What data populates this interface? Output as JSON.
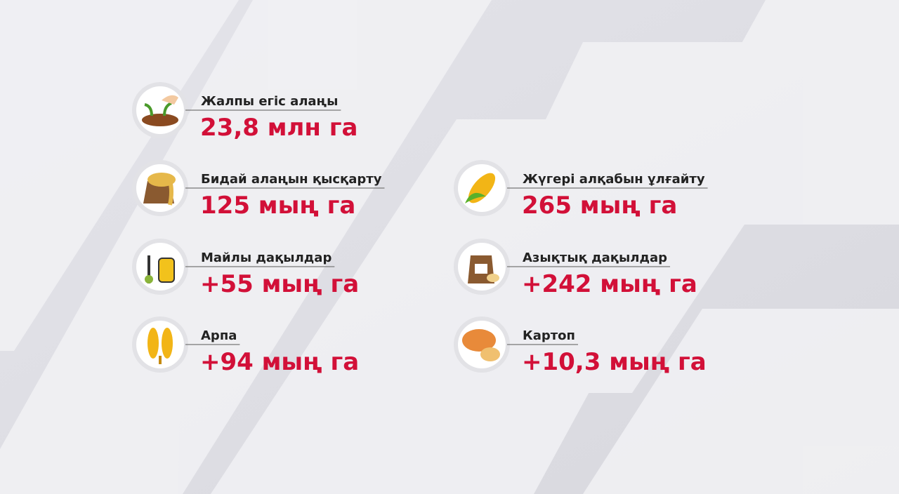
{
  "items": [
    {
      "label": "Жалпы егіс алаңы",
      "value": "23,8 млн га"
    },
    {
      "label": "Бидай алаңын қысқарту",
      "value": "125 мың га"
    },
    {
      "label": "Жүгері алқабын ұлғайту",
      "value": "265 мың га"
    },
    {
      "label": "Майлы дақылдар",
      "value": "+55 мың га"
    },
    {
      "label": "Азықтық дақылдар",
      "value": "+242 мың га"
    },
    {
      "label": "Арпа",
      "value": "+94 мың га"
    },
    {
      "label": "Картоп",
      "value": "+10,3 мың га"
    }
  ]
}
